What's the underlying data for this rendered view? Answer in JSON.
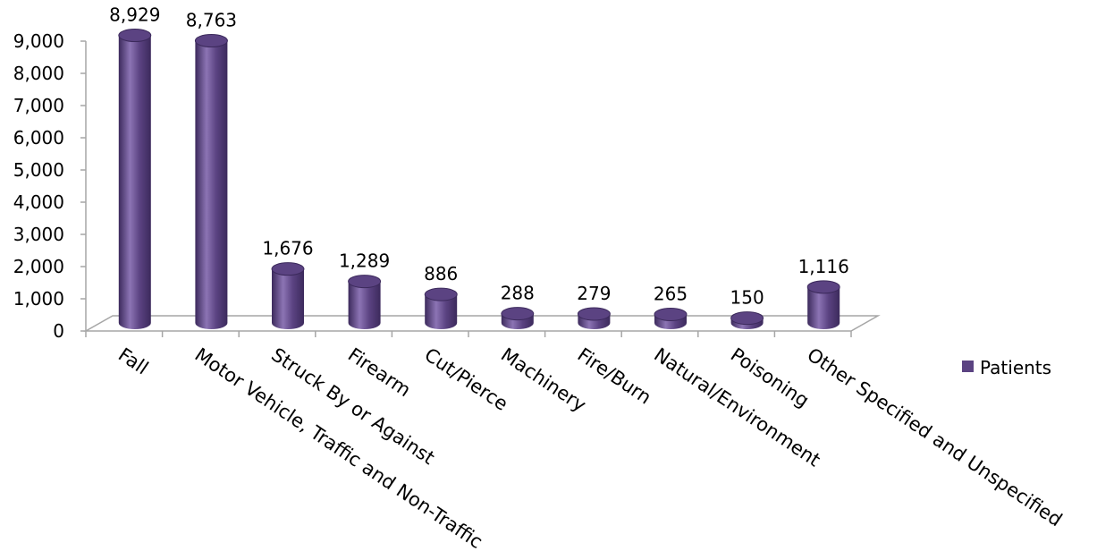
{
  "chart_data": {
    "type": "bar",
    "categories": [
      "Fall",
      "Motor Vehicle, Traffic and Non-Traffic",
      "Struck By or Against",
      "Firearm",
      "Cut/Pierce",
      "Machinery",
      "Fire/Burn",
      "Natural/Environment",
      "Poisoning",
      "Other Specified and Unspecified"
    ],
    "series": [
      {
        "name": "Patients",
        "values": [
          8929,
          8763,
          1676,
          1289,
          886,
          288,
          279,
          265,
          150,
          1116
        ],
        "labels": [
          "8,929",
          "8,763",
          "1,676",
          "1,289",
          "886",
          "288",
          "279",
          "265",
          "150",
          "1,116"
        ]
      }
    ],
    "yticks": [
      "0",
      "1,000",
      "2,000",
      "3,000",
      "4,000",
      "5,000",
      "6,000",
      "7,000",
      "8,000",
      "9,000"
    ],
    "ylim": [
      0,
      9000
    ],
    "grid": false,
    "legend_position": "right",
    "colors": {
      "bar": "#5b4382",
      "bar_dark": "#3c2a5c",
      "bar_light": "#8c74b4",
      "axis": "#a6a6a6"
    }
  }
}
